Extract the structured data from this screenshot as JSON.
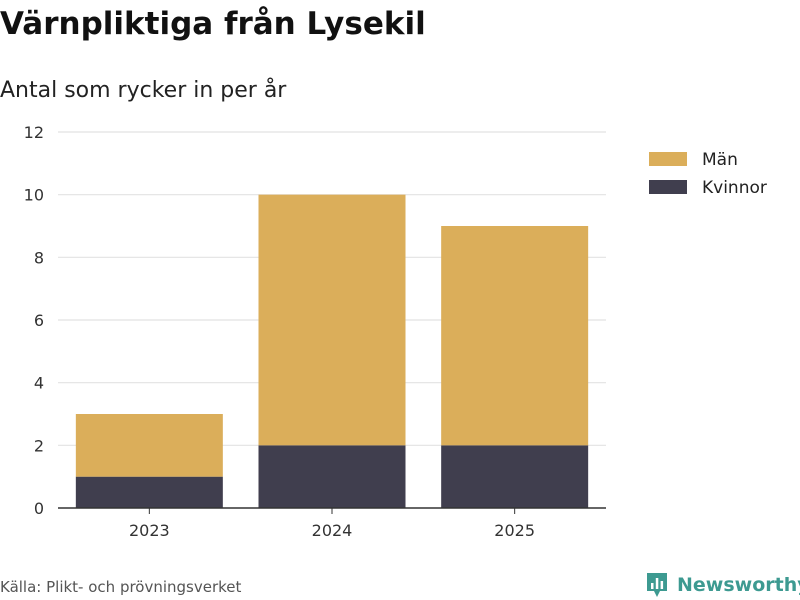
{
  "title": "Värnpliktiga från Lysekil",
  "subtitle": "Antal som rycker in per år",
  "source": "Källa: Plikt- och prövningsverket",
  "brand": {
    "name": "Newsworthy",
    "icon": "bar-chart-logo-icon",
    "color": "#3d9a91"
  },
  "chart_data": {
    "type": "bar",
    "stacked": true,
    "categories": [
      "2023",
      "2024",
      "2025"
    ],
    "series": [
      {
        "name": "Kvinnor",
        "values": [
          1,
          2,
          2
        ],
        "color": "#403e4e"
      },
      {
        "name": "Män",
        "values": [
          2,
          8,
          7
        ],
        "color": "#dbae5a"
      }
    ],
    "ylim": [
      0,
      12
    ],
    "yticks": [
      0,
      2,
      4,
      6,
      8,
      10,
      12
    ],
    "grid": true,
    "legend": "top-right",
    "legend_order": [
      "Män",
      "Kvinnor"
    ]
  }
}
